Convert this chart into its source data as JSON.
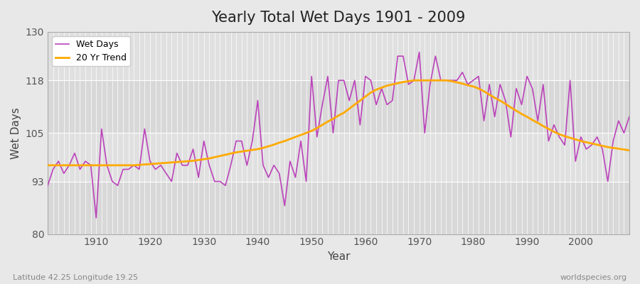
{
  "title": "Yearly Total Wet Days 1901 - 2009",
  "xlabel": "Year",
  "ylabel": "Wet Days",
  "subtitle_left": "Latitude 42.25 Longitude 19.25",
  "subtitle_right": "worldspecies.org",
  "ylim": [
    80,
    130
  ],
  "xlim": [
    1901,
    2009
  ],
  "yticks": [
    80,
    93,
    105,
    118,
    130
  ],
  "xticks": [
    1910,
    1920,
    1930,
    1940,
    1950,
    1960,
    1970,
    1980,
    1990,
    2000
  ],
  "wet_days_color": "#bb44bb",
  "trend_color": "#ffaa00",
  "background_color": "#e8e8e8",
  "plot_bg_color": "#e0e0e0",
  "grid_color": "#ffffff",
  "band_colors": [
    "#d8d8d8",
    "#e0e0e0"
  ],
  "legend_labels": [
    "Wet Days",
    "20 Yr Trend"
  ],
  "years": [
    1901,
    1902,
    1903,
    1904,
    1905,
    1906,
    1907,
    1908,
    1909,
    1910,
    1911,
    1912,
    1913,
    1914,
    1915,
    1916,
    1917,
    1918,
    1919,
    1920,
    1921,
    1922,
    1923,
    1924,
    1925,
    1926,
    1927,
    1928,
    1929,
    1930,
    1931,
    1932,
    1933,
    1934,
    1935,
    1936,
    1937,
    1938,
    1939,
    1940,
    1941,
    1942,
    1943,
    1944,
    1945,
    1946,
    1947,
    1948,
    1949,
    1950,
    1951,
    1952,
    1953,
    1954,
    1955,
    1956,
    1957,
    1958,
    1959,
    1960,
    1961,
    1962,
    1963,
    1964,
    1965,
    1966,
    1967,
    1968,
    1969,
    1970,
    1971,
    1972,
    1973,
    1974,
    1975,
    1976,
    1977,
    1978,
    1979,
    1980,
    1981,
    1982,
    1983,
    1984,
    1985,
    1986,
    1987,
    1988,
    1989,
    1990,
    1991,
    1992,
    1993,
    1994,
    1995,
    1996,
    1997,
    1998,
    1999,
    2000,
    2001,
    2002,
    2003,
    2004,
    2005,
    2006,
    2007,
    2008,
    2009
  ],
  "wet_days": [
    92,
    96,
    98,
    95,
    97,
    100,
    96,
    98,
    97,
    84,
    106,
    97,
    93,
    92,
    96,
    96,
    97,
    96,
    106,
    98,
    96,
    97,
    95,
    93,
    100,
    97,
    97,
    101,
    94,
    103,
    97,
    93,
    93,
    92,
    97,
    103,
    103,
    97,
    103,
    113,
    97,
    94,
    97,
    95,
    87,
    98,
    94,
    103,
    93,
    119,
    104,
    112,
    119,
    105,
    118,
    118,
    113,
    118,
    107,
    119,
    118,
    112,
    116,
    112,
    113,
    124,
    124,
    117,
    118,
    125,
    105,
    117,
    124,
    118,
    118,
    118,
    118,
    120,
    117,
    118,
    119,
    108,
    117,
    109,
    117,
    113,
    104,
    116,
    112,
    119,
    116,
    108,
    117,
    103,
    107,
    104,
    102,
    118,
    98,
    104,
    101,
    102,
    104,
    101,
    93,
    103,
    108,
    105,
    109
  ],
  "trend": [
    97.0,
    97.0,
    97.0,
    97.0,
    97.0,
    97.0,
    97.0,
    97.0,
    97.0,
    97.0,
    97.0,
    97.0,
    97.0,
    97.0,
    97.0,
    97.0,
    97.0,
    97.1,
    97.2,
    97.3,
    97.4,
    97.5,
    97.6,
    97.7,
    97.8,
    97.9,
    98.0,
    98.1,
    98.3,
    98.5,
    98.7,
    99.0,
    99.3,
    99.6,
    99.9,
    100.2,
    100.4,
    100.6,
    100.8,
    101.0,
    101.3,
    101.7,
    102.1,
    102.6,
    103.0,
    103.5,
    104.0,
    104.5,
    105.0,
    105.5,
    106.2,
    107.0,
    107.8,
    108.5,
    109.3,
    110.0,
    111.0,
    112.0,
    113.0,
    114.0,
    115.0,
    115.7,
    116.2,
    116.7,
    117.0,
    117.3,
    117.6,
    117.8,
    118.0,
    118.0,
    118.0,
    118.0,
    118.0,
    118.0,
    118.0,
    117.8,
    117.5,
    117.2,
    116.8,
    116.5,
    116.0,
    115.3,
    114.5,
    113.7,
    113.0,
    112.2,
    111.3,
    110.5,
    109.7,
    109.0,
    108.2,
    107.5,
    106.7,
    106.0,
    105.3,
    104.7,
    104.2,
    103.8,
    103.4,
    103.0,
    102.7,
    102.4,
    102.1,
    101.8,
    101.5,
    101.3,
    101.1,
    100.9,
    100.7
  ]
}
